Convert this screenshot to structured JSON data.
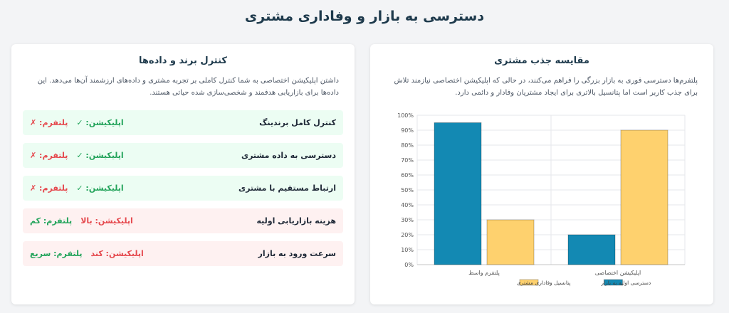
{
  "page": {
    "title": "دسترسی به بازار و وفاداری مشتری"
  },
  "control_card": {
    "title": "کنترل برند و داده‌ها",
    "description": "داشتن اپلیکیشن اختصاصی به شما کنترل کاملی بر تجربه مشتری و داده‌های ارزشمند آن‌ها می‌دهد. این داده‌ها برای بازاریابی هدفمند و شخصی‌سازی شده حیاتی هستند.",
    "rows": [
      {
        "label": "کنترل کامل برندینگ",
        "app": "اپلیکیشن: ✓",
        "platform": "پلتفرم: ✗",
        "app_tone": "green",
        "platform_tone": "red",
        "bg": "good"
      },
      {
        "label": "دسترسی به داده مشتری",
        "app": "اپلیکیشن: ✓",
        "platform": "پلتفرم: ✗",
        "app_tone": "green",
        "platform_tone": "red",
        "bg": "good"
      },
      {
        "label": "ارتباط مستقیم با مشتری",
        "app": "اپلیکیشن: ✓",
        "platform": "پلتفرم: ✗",
        "app_tone": "green",
        "platform_tone": "red",
        "bg": "good"
      },
      {
        "label": "هزینه بازاریابی اولیه",
        "app": "اپلیکیشن: بالا",
        "platform": "پلتفرم: کم",
        "app_tone": "red",
        "platform_tone": "green",
        "bg": "bad"
      },
      {
        "label": "سرعت ورود به بازار",
        "app": "اپلیکیشن: کند",
        "platform": "پلتفرم: سریع",
        "app_tone": "red",
        "platform_tone": "green",
        "bg": "bad"
      }
    ]
  },
  "chart_card": {
    "title": "مقایسه جذب مشتری",
    "description": "پلتفرم‌ها دسترسی فوری به بازار بزرگی را فراهم می‌کنند، در حالی که اپلیکیشن اختصاصی نیازمند تلاش برای جذب کاربر است اما پتانسیل بالاتری برای ایجاد مشتریان وفادار و دائمی دارد."
  },
  "chart_data": {
    "type": "bar",
    "categories": [
      "پلتفرم واسط",
      "اپلیکیشن اختصاصی"
    ],
    "series": [
      {
        "name": "دسترسی اولیه به بازار",
        "values": [
          95,
          20
        ],
        "color": "#1389b3"
      },
      {
        "name": "پتانسیل وفاداری مشتری",
        "values": [
          30,
          90
        ],
        "color": "#fed16e"
      }
    ],
    "ylim": [
      0,
      100
    ],
    "y_ticks": [
      "0%",
      "10%",
      "20%",
      "30%",
      "40%",
      "50%",
      "60%",
      "70%",
      "80%",
      "90%",
      "100%"
    ],
    "grid": true,
    "legend": "bottom"
  }
}
